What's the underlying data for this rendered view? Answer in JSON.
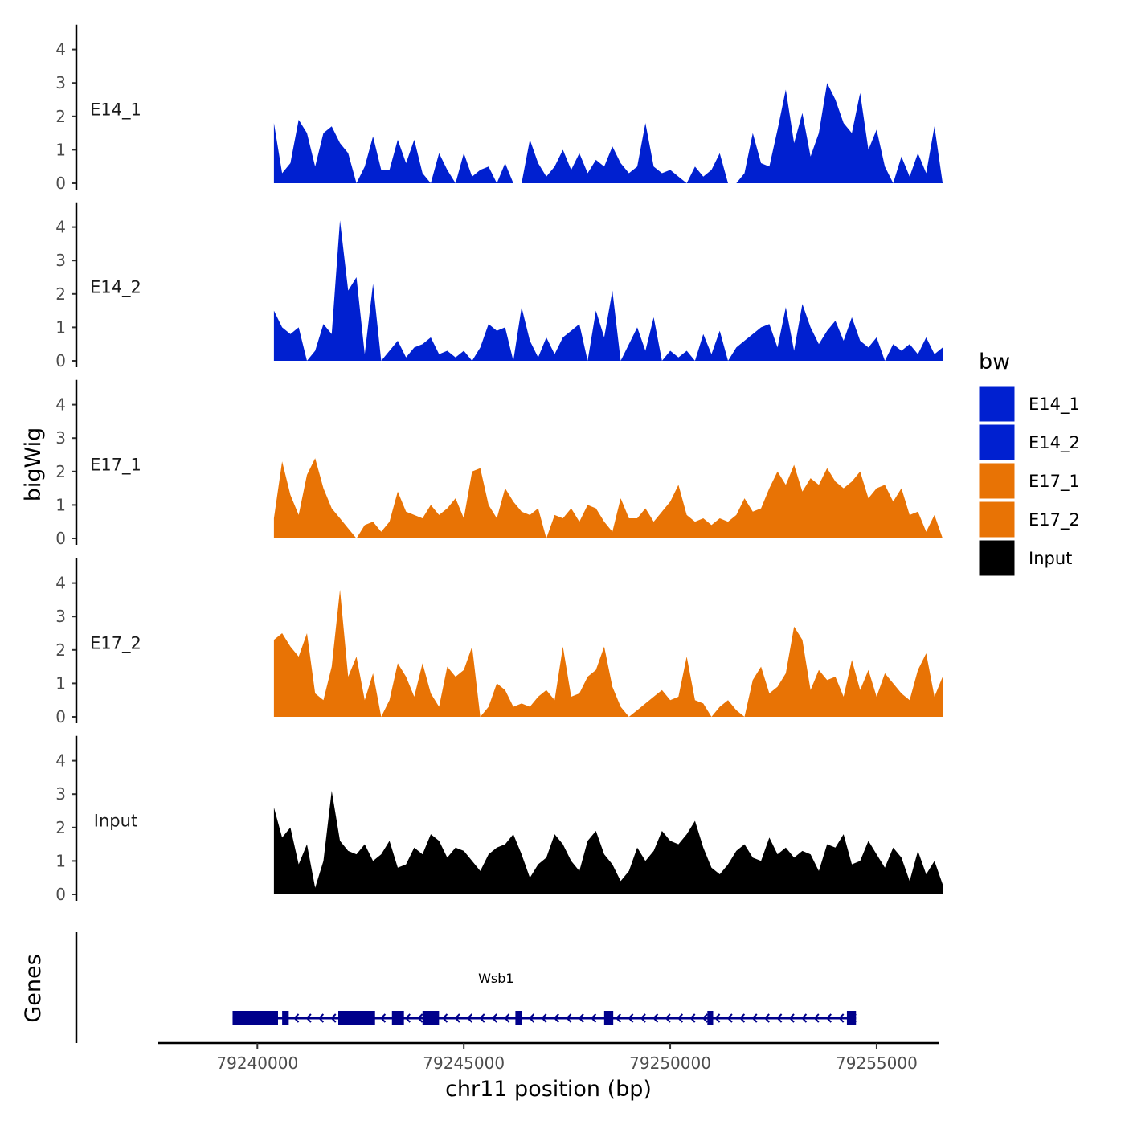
{
  "chart_data": {
    "type": "area",
    "title": "",
    "ylabel": "bigWig",
    "genes_label": "Genes",
    "xlabel": "chr11 position (bp)",
    "xlim": [
      79237600,
      79256500
    ],
    "ylim": [
      0,
      4.5
    ],
    "y_ticks": [
      0,
      1,
      2,
      3,
      4
    ],
    "x_ticks": [
      79240000,
      79245000,
      79250000,
      79255000
    ],
    "legend": {
      "title": "bw",
      "position": "right",
      "entries": [
        {
          "label": "E14_1",
          "color": "#0020d0"
        },
        {
          "label": "E14_2",
          "color": "#0020d0"
        },
        {
          "label": "E17_1",
          "color": "#e87305"
        },
        {
          "label": "E17_2",
          "color": "#e87305"
        },
        {
          "label": "Input",
          "color": "#000000"
        }
      ]
    },
    "x": [
      79240400,
      79240600,
      79240800,
      79241000,
      79241200,
      79241400,
      79241600,
      79241800,
      79242000,
      79242200,
      79242400,
      79242600,
      79242800,
      79243000,
      79243200,
      79243400,
      79243600,
      79243800,
      79244000,
      79244200,
      79244400,
      79244600,
      79244800,
      79245000,
      79245200,
      79245400,
      79245600,
      79245800,
      79246000,
      79246200,
      79246400,
      79246600,
      79246800,
      79247000,
      79247200,
      79247400,
      79247600,
      79247800,
      79248000,
      79248200,
      79248400,
      79248600,
      79248800,
      79249000,
      79249200,
      79249400,
      79249600,
      79249800,
      79250000,
      79250200,
      79250400,
      79250600,
      79250800,
      79251000,
      79251200,
      79251400,
      79251600,
      79251800,
      79252000,
      79252200,
      79252400,
      79252600,
      79252800,
      79253000,
      79253200,
      79253400,
      79253600,
      79253800,
      79254000,
      79254200,
      79254400,
      79254600,
      79254800,
      79255000,
      79255200,
      79255400,
      79255600,
      79255800,
      79256000,
      79256200,
      79256400,
      79256600
    ],
    "series": [
      {
        "name": "E14_1",
        "color": "#0020d0",
        "values": [
          1.8,
          0.3,
          0.6,
          1.9,
          1.5,
          0.5,
          1.5,
          1.7,
          1.2,
          0.9,
          0.0,
          0.5,
          1.4,
          0.4,
          0.4,
          1.3,
          0.6,
          1.3,
          0.3,
          0.0,
          0.9,
          0.4,
          0.0,
          0.9,
          0.2,
          0.4,
          0.5,
          0.0,
          0.6,
          0.0,
          0.0,
          1.3,
          0.6,
          0.2,
          0.5,
          1.0,
          0.4,
          0.9,
          0.3,
          0.7,
          0.5,
          1.1,
          0.6,
          0.3,
          0.5,
          1.8,
          0.5,
          0.3,
          0.4,
          0.2,
          0.0,
          0.5,
          0.2,
          0.4,
          0.9,
          0.0,
          0.0,
          0.3,
          1.5,
          0.6,
          0.5,
          1.6,
          2.8,
          1.2,
          2.1,
          0.8,
          1.5,
          3.0,
          2.5,
          1.8,
          1.5,
          2.7,
          1.0,
          1.6,
          0.5,
          0.0,
          0.8,
          0.2,
          0.9,
          0.3,
          1.7,
          0.0
        ]
      },
      {
        "name": "E14_2",
        "color": "#0020d0",
        "values": [
          1.5,
          1.0,
          0.8,
          1.0,
          0.0,
          0.3,
          1.1,
          0.8,
          4.2,
          2.1,
          2.5,
          0.2,
          2.3,
          0.0,
          0.3,
          0.6,
          0.1,
          0.4,
          0.5,
          0.7,
          0.2,
          0.3,
          0.1,
          0.3,
          0.0,
          0.4,
          1.1,
          0.9,
          1.0,
          0.0,
          1.6,
          0.6,
          0.1,
          0.7,
          0.2,
          0.7,
          0.9,
          1.1,
          0.0,
          1.5,
          0.7,
          2.1,
          0.0,
          0.5,
          1.0,
          0.3,
          1.3,
          0.0,
          0.3,
          0.1,
          0.3,
          0.0,
          0.8,
          0.2,
          0.9,
          0.0,
          0.4,
          0.6,
          0.8,
          1.0,
          1.1,
          0.4,
          1.6,
          0.3,
          1.7,
          1.0,
          0.5,
          0.9,
          1.2,
          0.6,
          1.3,
          0.6,
          0.4,
          0.7,
          0.0,
          0.5,
          0.3,
          0.5,
          0.2,
          0.7,
          0.2,
          0.4
        ]
      },
      {
        "name": "E17_1",
        "color": "#e87305",
        "values": [
          0.6,
          2.3,
          1.3,
          0.7,
          1.9,
          2.4,
          1.5,
          0.9,
          0.6,
          0.3,
          0.0,
          0.4,
          0.5,
          0.2,
          0.5,
          1.4,
          0.8,
          0.7,
          0.6,
          1.0,
          0.7,
          0.9,
          1.2,
          0.6,
          2.0,
          2.1,
          1.0,
          0.6,
          1.5,
          1.1,
          0.8,
          0.7,
          0.9,
          0.0,
          0.7,
          0.6,
          0.9,
          0.5,
          1.0,
          0.9,
          0.5,
          0.2,
          1.2,
          0.6,
          0.6,
          0.9,
          0.5,
          0.8,
          1.1,
          1.6,
          0.7,
          0.5,
          0.6,
          0.4,
          0.6,
          0.5,
          0.7,
          1.2,
          0.8,
          0.9,
          1.5,
          2.0,
          1.6,
          2.2,
          1.4,
          1.8,
          1.6,
          2.1,
          1.7,
          1.5,
          1.7,
          2.0,
          1.2,
          1.5,
          1.6,
          1.1,
          1.5,
          0.7,
          0.8,
          0.2,
          0.7,
          0.0
        ]
      },
      {
        "name": "E17_2",
        "color": "#e87305",
        "values": [
          2.3,
          2.5,
          2.1,
          1.8,
          2.5,
          0.7,
          0.5,
          1.5,
          3.8,
          1.2,
          1.8,
          0.5,
          1.3,
          0.0,
          0.5,
          1.6,
          1.2,
          0.6,
          1.6,
          0.7,
          0.3,
          1.5,
          1.2,
          1.4,
          2.1,
          0.0,
          0.3,
          1.0,
          0.8,
          0.3,
          0.4,
          0.3,
          0.6,
          0.8,
          0.5,
          2.1,
          0.6,
          0.7,
          1.2,
          1.4,
          2.1,
          0.9,
          0.3,
          0.0,
          0.2,
          0.4,
          0.6,
          0.8,
          0.5,
          0.6,
          1.8,
          0.5,
          0.4,
          0.0,
          0.3,
          0.5,
          0.2,
          0.0,
          1.1,
          1.5,
          0.7,
          0.9,
          1.3,
          2.7,
          2.3,
          0.8,
          1.4,
          1.1,
          1.2,
          0.6,
          1.7,
          0.8,
          1.4,
          0.6,
          1.3,
          1.0,
          0.7,
          0.5,
          1.4,
          1.9,
          0.6,
          1.2
        ]
      },
      {
        "name": "Input",
        "color": "#000000",
        "values": [
          2.6,
          1.7,
          2.0,
          0.9,
          1.5,
          0.2,
          1.0,
          3.1,
          1.6,
          1.3,
          1.2,
          1.5,
          1.0,
          1.2,
          1.6,
          0.8,
          0.9,
          1.4,
          1.2,
          1.8,
          1.6,
          1.1,
          1.4,
          1.3,
          1.0,
          0.7,
          1.2,
          1.4,
          1.5,
          1.8,
          1.2,
          0.5,
          0.9,
          1.1,
          1.8,
          1.5,
          1.0,
          0.7,
          1.6,
          1.9,
          1.2,
          0.9,
          0.4,
          0.7,
          1.4,
          1.0,
          1.3,
          1.9,
          1.6,
          1.5,
          1.8,
          2.2,
          1.4,
          0.8,
          0.6,
          0.9,
          1.3,
          1.5,
          1.1,
          1.0,
          1.7,
          1.2,
          1.4,
          1.1,
          1.3,
          1.2,
          0.7,
          1.5,
          1.4,
          1.8,
          0.9,
          1.0,
          1.6,
          1.2,
          0.8,
          1.4,
          1.1,
          0.4,
          1.3,
          0.6,
          1.0,
          0.3
        ]
      }
    ],
    "gene": {
      "name": "Wsb1",
      "color": "#00008b",
      "start": 79239400,
      "end": 79254500,
      "strand": "-",
      "exons": [
        [
          79239400,
          79240500
        ],
        [
          79240600,
          79240760
        ],
        [
          79241960,
          79242850
        ],
        [
          79243260,
          79243550
        ],
        [
          79244000,
          79244400
        ],
        [
          79246250,
          79246400
        ],
        [
          79248400,
          79248620
        ],
        [
          79250900,
          79251040
        ],
        [
          79254280,
          79254500
        ]
      ]
    }
  }
}
